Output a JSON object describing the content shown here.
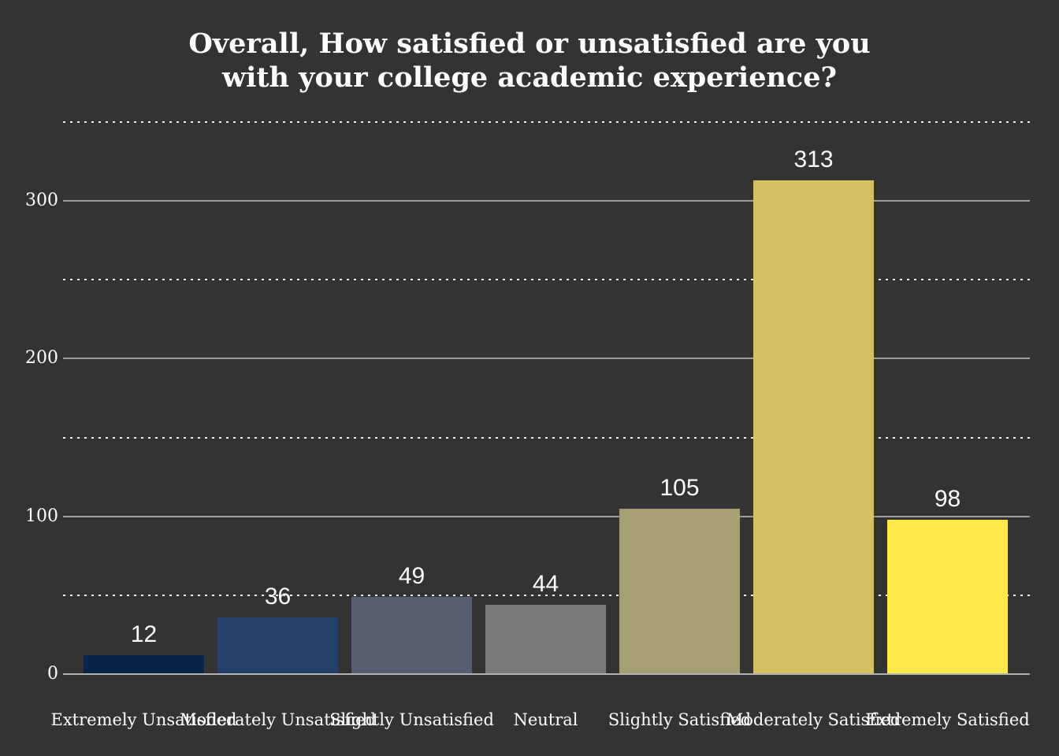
{
  "background_color": "#333333",
  "text_color": "#ffffff",
  "gridline_color_major": "#9c9c9c",
  "axis_line_color": "#b3b3b3",
  "chart_data": {
    "type": "bar",
    "title": "Overall, How satisfied or unsatisfied are you with your college academic experience?",
    "title_lines": [
      "Overall, How satisfied or unsatisfied are you",
      "with your college academic experience?"
    ],
    "categories": [
      "Extremely Unsatisfied",
      "Moderately Unsatisfied",
      "Slightly Unsatisfied",
      "Neutral",
      "Slightly Satisfied",
      "Moderately Satisfied",
      "Extremely Satisfied"
    ],
    "values": [
      12,
      36,
      49,
      44,
      105,
      313,
      98
    ],
    "bar_colors": [
      "#0a2349",
      "#264069",
      "#565e72",
      "#7a7a78",
      "#a79f74",
      "#d4bf63",
      "#ffe84a"
    ],
    "xlabel": "",
    "ylabel": "",
    "ylim": [
      0,
      350
    ],
    "yticks_major": [
      0,
      100,
      200,
      300
    ],
    "yticks_minor": [
      50,
      150,
      250,
      350
    ],
    "grid": "major horizontal solid grey, minor horizontal dotted white",
    "legend": "none",
    "data_labels": "white values above each bar"
  }
}
